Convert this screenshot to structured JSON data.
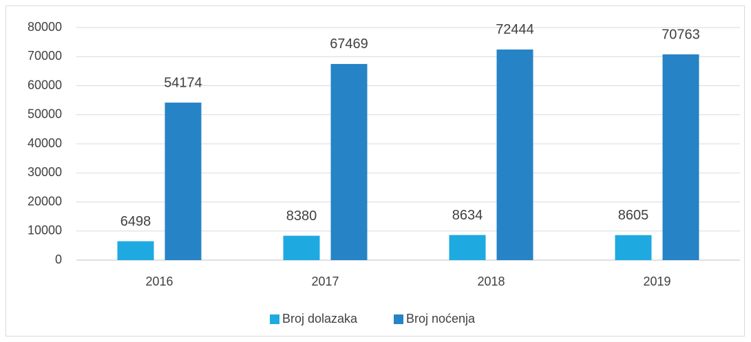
{
  "chart_data": {
    "type": "bar",
    "categories": [
      "2016",
      "2017",
      "2018",
      "2019"
    ],
    "series": [
      {
        "name": "Broj dolazaka",
        "color": "#1fa9e1",
        "values": [
          6498,
          8380,
          8634,
          8605
        ]
      },
      {
        "name": "Broj noćenja",
        "color": "#2683c6",
        "values": [
          54174,
          67469,
          72444,
          70763
        ]
      }
    ],
    "ylim": [
      0,
      80000
    ],
    "yticks": [
      0,
      10000,
      20000,
      30000,
      40000,
      50000,
      60000,
      70000,
      80000
    ],
    "grid": true,
    "legend": "bottom"
  }
}
